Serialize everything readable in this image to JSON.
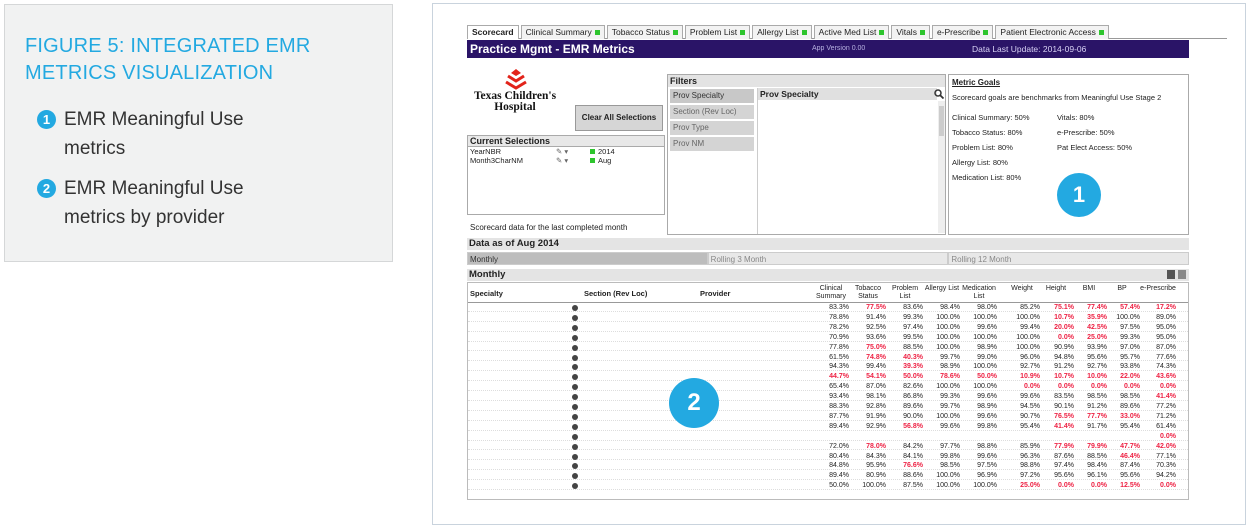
{
  "callout": {
    "title": "FIGURE 5: INTEGRATED EMR METRICS VISUALIZATION",
    "items": [
      {
        "num": "1",
        "text": "EMR Meaningful Use metrics"
      },
      {
        "num": "2",
        "text": "EMR Meaningful Use metrics by provider"
      }
    ]
  },
  "tabs": [
    {
      "label": "Scorecard",
      "active": true,
      "dot": false
    },
    {
      "label": "Clinical Summary",
      "dot": true
    },
    {
      "label": "Tobacco Status",
      "dot": true
    },
    {
      "label": "Problem List",
      "dot": true
    },
    {
      "label": "Allergy List",
      "dot": true
    },
    {
      "label": "Active Med List",
      "dot": true
    },
    {
      "label": "Vitals",
      "dot": true
    },
    {
      "label": "e-Prescribe",
      "dot": true
    },
    {
      "label": "Patient Electronic Access",
      "dot": true
    }
  ],
  "titlebar": {
    "title": "Practice Mgmt - EMR Metrics",
    "version": "App Version 0.00",
    "updated": "Data Last Update:  2014-09-06"
  },
  "logo": {
    "line1": "Texas Children's",
    "line2": "Hospital"
  },
  "clear_label": "Clear All Selections",
  "current_selections": {
    "header": "Current Selections",
    "rows": [
      {
        "key": "YearNBR",
        "value": "2014"
      },
      {
        "key": "Month3CharNM",
        "value": "Aug"
      }
    ]
  },
  "scorecard_note": "Scorecard data for the last completed month",
  "filters": {
    "header": "Filters",
    "items": [
      "Prov Specialty",
      "Section (Rev Loc)",
      "Prov Type",
      "Prov NM"
    ],
    "list_header": "Prov Specialty"
  },
  "goals": {
    "header": "Metric Goals",
    "subtitle": "Scorecard goals are benchmarks from Meaningful Use Stage 2",
    "left": [
      "Clinical Summary: 50%",
      "Tobacco Status: 80%",
      "Problem List: 80%",
      "Allergy List: 80%",
      "Medication List: 80%"
    ],
    "right": [
      "Vitals: 80%",
      "e-Prescribe: 50%",
      "Pat Elect Access: 50%"
    ]
  },
  "badges": {
    "one": "1",
    "two": "2"
  },
  "asof": "Data as of Aug 2014",
  "periods": [
    "Monthly",
    "Rolling 3 Month",
    "Rolling 12 Month"
  ],
  "monthly": "Monthly",
  "grid": {
    "columns": {
      "specialty": "Specialty",
      "section": "Section (Rev Loc)",
      "provider": "Provider"
    },
    "metric_columns": [
      "Clinical Summary",
      "Tobacco Status",
      "Problem List",
      "Allergy List",
      "Medication List",
      "Weight",
      "Height",
      "BMI",
      "BP",
      "e-Prescribe"
    ],
    "rows": [
      [
        "83.3%",
        "77.5%",
        "83.6%",
        "98.4%",
        "98.0%",
        "85.2%",
        "75.1%",
        "77.4%",
        "57.4%",
        "17.2%"
      ],
      [
        "78.8%",
        "91.4%",
        "99.3%",
        "100.0%",
        "100.0%",
        "100.0%",
        "10.7%",
        "35.9%",
        "100.0%",
        "89.0%"
      ],
      [
        "78.2%",
        "92.5%",
        "97.4%",
        "100.0%",
        "99.6%",
        "99.4%",
        "20.0%",
        "42.5%",
        "97.5%",
        "95.0%"
      ],
      [
        "70.9%",
        "93.6%",
        "99.5%",
        "100.0%",
        "100.0%",
        "100.0%",
        "0.0%",
        "25.0%",
        "99.3%",
        "95.0%"
      ],
      [
        "77.8%",
        "75.0%",
        "88.5%",
        "100.0%",
        "98.9%",
        "100.0%",
        "90.9%",
        "93.9%",
        "97.0%",
        "87.0%"
      ],
      [
        "61.5%",
        "74.8%",
        "40.3%",
        "99.7%",
        "99.0%",
        "96.0%",
        "94.8%",
        "95.6%",
        "95.7%",
        "77.6%"
      ],
      [
        "94.3%",
        "99.4%",
        "39.3%",
        "98.9%",
        "100.0%",
        "92.7%",
        "91.2%",
        "92.7%",
        "93.8%",
        "74.3%"
      ],
      [
        "44.7%",
        "54.1%",
        "50.0%",
        "78.6%",
        "50.0%",
        "10.9%",
        "10.7%",
        "10.0%",
        "22.0%",
        "43.6%"
      ],
      [
        "65.4%",
        "87.0%",
        "82.6%",
        "100.0%",
        "100.0%",
        "0.0%",
        "0.0%",
        "0.0%",
        "0.0%",
        "0.0%"
      ],
      [
        "93.4%",
        "98.1%",
        "86.8%",
        "99.3%",
        "99.6%",
        "99.6%",
        "83.5%",
        "98.5%",
        "98.5%",
        "41.4%"
      ],
      [
        "88.3%",
        "92.8%",
        "89.6%",
        "99.7%",
        "98.9%",
        "94.5%",
        "90.1%",
        "91.2%",
        "89.6%",
        "77.2%"
      ],
      [
        "87.7%",
        "91.9%",
        "90.0%",
        "100.0%",
        "99.6%",
        "90.7%",
        "76.5%",
        "77.7%",
        "33.0%",
        "71.2%"
      ],
      [
        "89.4%",
        "92.9%",
        "56.8%",
        "99.6%",
        "99.8%",
        "95.4%",
        "41.4%",
        "91.7%",
        "95.4%",
        "61.4%"
      ],
      [
        "",
        "",
        "",
        "",
        "",
        "",
        "",
        "",
        "",
        "0.0%"
      ],
      [
        "72.0%",
        "78.0%",
        "84.2%",
        "97.7%",
        "98.8%",
        "85.9%",
        "77.9%",
        "79.9%",
        "47.7%",
        "42.0%"
      ],
      [
        "80.4%",
        "84.3%",
        "84.1%",
        "99.8%",
        "99.6%",
        "96.3%",
        "87.6%",
        "88.5%",
        "46.4%",
        "77.1%"
      ],
      [
        "84.8%",
        "95.9%",
        "76.6%",
        "98.5%",
        "97.5%",
        "98.8%",
        "97.4%",
        "98.4%",
        "87.4%",
        "70.3%"
      ],
      [
        "89.4%",
        "80.9%",
        "88.6%",
        "100.0%",
        "96.9%",
        "97.2%",
        "95.6%",
        "96.1%",
        "95.6%",
        "94.2%"
      ],
      [
        "50.0%",
        "100.0%",
        "87.5%",
        "100.0%",
        "100.0%",
        "25.0%",
        "0.0%",
        "0.0%",
        "12.5%",
        "0.0%"
      ]
    ],
    "red": [
      [
        1,
        6,
        7,
        8,
        9
      ],
      [
        6,
        7
      ],
      [
        6,
        7
      ],
      [
        6,
        7
      ],
      [
        1
      ],
      [
        1,
        2
      ],
      [
        2
      ],
      [
        0,
        1,
        2,
        3,
        4,
        5,
        6,
        7,
        8,
        9
      ],
      [
        5,
        6,
        7,
        8,
        9
      ],
      [
        9
      ],
      [],
      [
        6,
        7,
        8
      ],
      [
        2,
        6
      ],
      [
        9
      ],
      [
        1,
        6,
        7,
        8,
        9
      ],
      [
        8
      ],
      [
        2
      ],
      [],
      [
        5,
        6,
        7,
        8,
        9
      ]
    ]
  },
  "colors": {
    "accent": "#23a9e1",
    "titlebar": "#2a1467",
    "red": "#ee2244",
    "green": "#2ec52e"
  }
}
